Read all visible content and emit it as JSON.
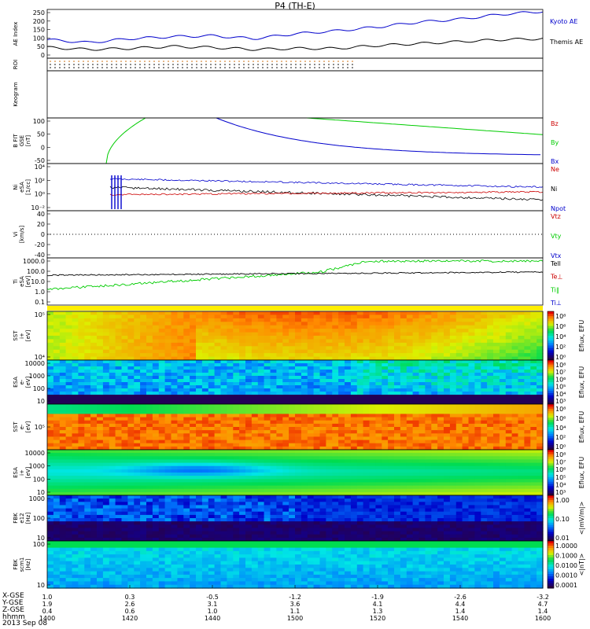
{
  "title": "P4 (TH-E)",
  "date": "2013 Sep 08",
  "footer_rows": [
    "X-GSE",
    "Y-GSE",
    "Z-GSE",
    "hhmm"
  ],
  "x_ticks": [
    {
      "hhmm": "1400",
      "x": "1.0",
      "y": "1.9",
      "z": "0.4"
    },
    {
      "hhmm": "1420",
      "x": "0.3",
      "y": "2.6",
      "z": "0.6"
    },
    {
      "hhmm": "1440",
      "x": "-0.5",
      "y": "3.1",
      "z": "1.0"
    },
    {
      "hhmm": "1500",
      "x": "-1.2",
      "y": "3.6",
      "z": "1.1"
    },
    {
      "hhmm": "1520",
      "x": "-1.9",
      "y": "4.1",
      "z": "1.3"
    },
    {
      "hhmm": "1540",
      "x": "-2.6",
      "y": "4.4",
      "z": "1.4"
    },
    {
      "hhmm": "1600",
      "x": "-3.2",
      "y": "4.7",
      "z": "1.4"
    }
  ],
  "colors": {
    "blue": "#0000cc",
    "black": "#000000",
    "green": "#00cc00",
    "red": "#cc0000"
  },
  "chart_data": [
    {
      "type": "line",
      "id": "ae",
      "ylabel": [
        "AE Index"
      ],
      "ylim": [
        0,
        250
      ],
      "y_ticks": [
        "250",
        "200",
        "150",
        "100",
        "50",
        "0"
      ],
      "x": [
        "1400",
        "1410",
        "1420",
        "1430",
        "1440",
        "1450",
        "1500",
        "1510",
        "1520",
        "1530",
        "1540",
        "1550",
        "1600"
      ],
      "series": [
        {
          "name": "Kyoto AE",
          "color": "#0000cc",
          "values": [
            95,
            80,
            100,
            110,
            115,
            100,
            125,
            140,
            160,
            185,
            200,
            225,
            240
          ]
        },
        {
          "name": "Themis AE",
          "color": "#000000",
          "values": [
            55,
            45,
            50,
            60,
            55,
            45,
            50,
            50,
            65,
            75,
            85,
            95,
            100
          ]
        }
      ]
    },
    {
      "type": "table",
      "id": "roi",
      "ylabel": [
        "ROI"
      ]
    },
    {
      "type": "table",
      "id": "keogram",
      "ylabel": [
        "Keogram"
      ]
    },
    {
      "type": "line",
      "id": "bfit",
      "ylabel": [
        "B FIT",
        "GSE",
        "[nT]"
      ],
      "ylim": [
        -50,
        100
      ],
      "y_ticks": [
        "100",
        "50",
        "0",
        "-50"
      ],
      "series": [
        {
          "name": "Bz",
          "color": "#cc0000"
        },
        {
          "name": "By",
          "color": "#00cc00"
        },
        {
          "name": "Bx",
          "color": "#0000cc"
        }
      ]
    },
    {
      "type": "line",
      "id": "ni",
      "ylabel": [
        "Ni",
        "eSA",
        "[1/cc]"
      ],
      "y_ticks": [
        "10⁴",
        "10²",
        "10⁰",
        "10⁻²"
      ],
      "series": [
        {
          "name": "Ne",
          "color": "#cc0000"
        },
        {
          "name": "Ni",
          "color": "#000000"
        },
        {
          "name": "Npot",
          "color": "#0000cc"
        }
      ]
    },
    {
      "type": "line",
      "id": "vi",
      "ylabel": [
        "Vi",
        "[km/s]"
      ],
      "ylim": [
        -50,
        50
      ],
      "y_ticks": [
        "40",
        "20",
        "0",
        "-20",
        "-40"
      ],
      "series": [
        {
          "name": "Vtz",
          "color": "#cc0000"
        },
        {
          "name": "Vty",
          "color": "#00cc00"
        },
        {
          "name": "Vtx",
          "color": "#0000cc"
        }
      ]
    },
    {
      "type": "line",
      "id": "ti",
      "ylabel": [
        "Ti",
        "eSA",
        "[eV]"
      ],
      "y_ticks": [
        "1000.0",
        "100.0",
        "10.0",
        "1.0",
        "0.1"
      ],
      "series": [
        {
          "name": "Tell",
          "color": "#000000"
        },
        {
          "name": "Te⊥",
          "color": "#cc0000"
        },
        {
          "name": "Ti∥",
          "color": "#00cc00"
        },
        {
          "name": "Ti⊥",
          "color": "#0000cc"
        }
      ]
    },
    {
      "type": "heatmap",
      "id": "sst_i",
      "ylabel": [
        "SST",
        "i+",
        "[eV]"
      ],
      "y_ticks": [
        "10⁵",
        "10⁴"
      ],
      "colorbar": [
        "10⁸",
        "10⁶",
        "10⁴",
        "10²",
        "10⁰"
      ],
      "colorbar_label": "Eflux, EFU"
    },
    {
      "type": "heatmap",
      "id": "esa_e",
      "ylabel": [
        "ESA",
        "e-",
        "[eV]"
      ],
      "y_ticks": [
        "10000",
        "1000",
        "100",
        "10"
      ],
      "colorbar": [
        "10⁸",
        "10⁷",
        "10⁶",
        "10⁵",
        "10⁴",
        "10³"
      ],
      "colorbar_label": "Eflux, EFU"
    },
    {
      "type": "heatmap",
      "id": "sst_e",
      "ylabel": [
        "SST",
        "e-",
        "[eV]"
      ],
      "y_ticks": [
        "10⁵"
      ],
      "colorbar": [
        "10⁸",
        "10⁶",
        "10⁴",
        "10²",
        "10⁰"
      ],
      "colorbar_label": "Eflux, EFU"
    },
    {
      "type": "heatmap",
      "id": "esa_i",
      "ylabel": [
        "ESA",
        "i+",
        "[eV]"
      ],
      "y_ticks": [
        "10000",
        "1000",
        "100",
        "10"
      ],
      "colorbar": [
        "10⁸",
        "10⁷",
        "10⁶",
        "10⁵",
        "10⁴",
        "10³"
      ],
      "colorbar_label": "Eflux, EFU"
    },
    {
      "type": "heatmap",
      "id": "fbk_e",
      "ylabel": [
        "FBK",
        "e12",
        "[Hz]"
      ],
      "y_ticks": [
        "1000",
        "100",
        "10"
      ],
      "colorbar": [
        "1.00",
        "0.10",
        "0.01"
      ],
      "colorbar_label": "<|mV/m|>"
    },
    {
      "type": "heatmap",
      "id": "fbk_b",
      "ylabel": [
        "FBK",
        "scm1",
        "[Hz]"
      ],
      "y_ticks": [
        "100",
        "10"
      ],
      "colorbar": [
        "1.0000",
        "0.1000",
        "0.0100",
        "0.0010",
        "0.0001"
      ],
      "colorbar_label": "<|nT|>"
    }
  ]
}
